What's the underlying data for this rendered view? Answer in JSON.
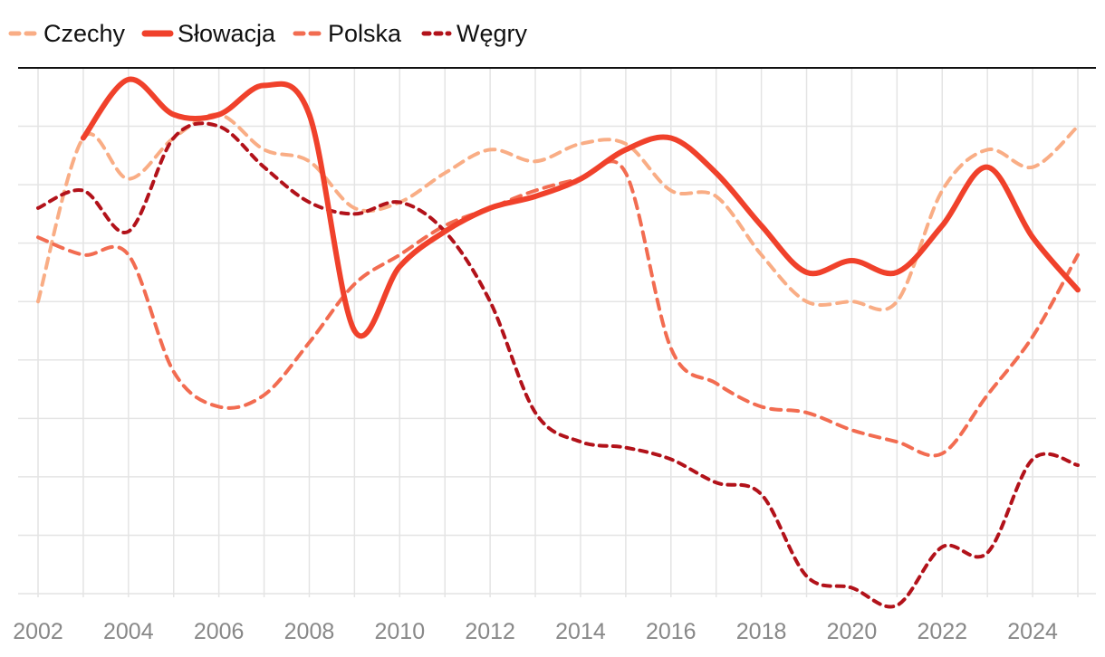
{
  "chart_data": {
    "type": "line",
    "title": "",
    "xlabel": "",
    "ylabel": "",
    "x": [
      2002,
      2003,
      2004,
      2005,
      2006,
      2007,
      2008,
      2009,
      2010,
      2011,
      2012,
      2013,
      2014,
      2015,
      2016,
      2017,
      2018,
      2019,
      2020,
      2021,
      2022,
      2023,
      2024,
      2025
    ],
    "x_ticks": [
      "2002",
      "2004",
      "2006",
      "2008",
      "2010",
      "2012",
      "2014",
      "2016",
      "2018",
      "2020",
      "2022",
      "2024"
    ],
    "ylim": [
      0,
      9
    ],
    "grid": true,
    "legend_position": "top-left",
    "series": [
      {
        "name": "Czechy",
        "color": "#f9ad85",
        "style": "dashed",
        "values": [
          5,
          7.8,
          7.1,
          7.8,
          8.2,
          7.6,
          7.4,
          6.6,
          6.7,
          7.2,
          7.6,
          7.4,
          7.7,
          7.7,
          6.9,
          6.8,
          5.8,
          5,
          5,
          5,
          6.9,
          7.6,
          7.3,
          8
        ]
      },
      {
        "name": "Słowacja",
        "color": "#f0412b",
        "style": "solid",
        "values": [
          null,
          7.8,
          8.8,
          8.2,
          8.2,
          8.7,
          8.2,
          4.5,
          5.6,
          6.2,
          6.6,
          6.8,
          7.1,
          7.6,
          7.8,
          7.2,
          6.3,
          5.5,
          5.7,
          5.5,
          6.3,
          7.3,
          6.1,
          5.2
        ]
      },
      {
        "name": "Polska",
        "color": "#f26c51",
        "style": "dashed",
        "values": [
          6.1,
          5.8,
          5.8,
          3.8,
          3.2,
          3.4,
          4.3,
          5.3,
          5.8,
          6.3,
          6.6,
          6.9,
          7.1,
          7.2,
          4.2,
          3.6,
          3.2,
          3.1,
          2.8,
          2.6,
          2.4,
          3.4,
          4.4,
          5.8
        ]
      },
      {
        "name": "Węgry",
        "color": "#b2121a",
        "style": "dotted",
        "values": [
          6.6,
          6.9,
          6.2,
          7.8,
          8,
          7.3,
          6.7,
          6.5,
          6.7,
          6.2,
          5,
          3.1,
          2.6,
          2.5,
          2.3,
          1.9,
          1.7,
          0.3,
          0.1,
          -0.2,
          0.8,
          0.7,
          2.3,
          2.2
        ]
      }
    ]
  }
}
